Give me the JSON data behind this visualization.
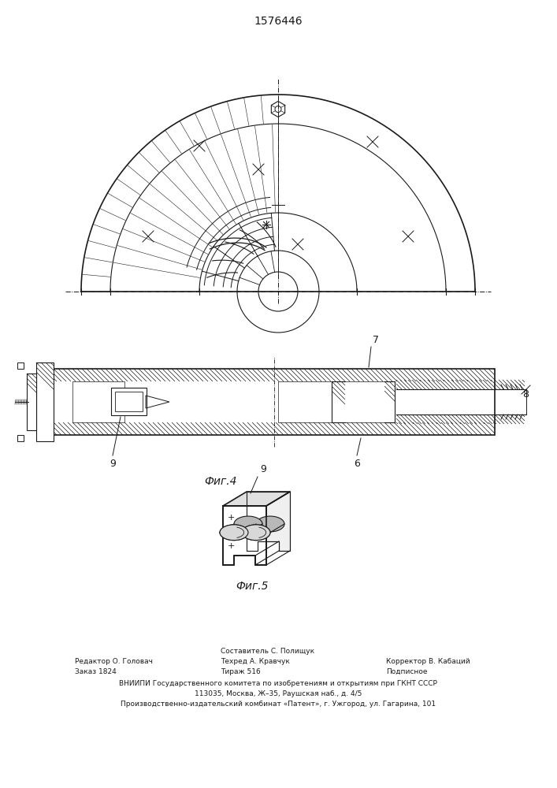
{
  "title": "1576446",
  "fig4_label": "Фиг.4",
  "fig5_label": "Фиг.5",
  "footer_line1_left": "Редактор О. Головач",
  "footer_line2_left": "Заказ 1824",
  "footer_line1_center": "Составитель С. Полищук",
  "footer_line2_center": "Техред А. Кравчук",
  "footer_line3_center": "Тираж 516",
  "footer_line1_right": "Корректор В. Кабаций",
  "footer_line2_right": "Подписное",
  "footer_vniip1": "ВНИИПИ Государственного комитета по изобретениям и открытиям при ГКНТ СССР",
  "footer_vniip2": "113035, Москва, Ж–35, Раушская наб., д. 4/5",
  "footer_vniip3": "Производственно-издательский комбинат «Патент», г. Ужгород, ул. Гагарина, 101",
  "label_6": "6",
  "label_7": "7",
  "label_8": "8",
  "label_9": "9",
  "label_9b": "9",
  "bg_color": "#ffffff",
  "line_color": "#1a1a1a",
  "hatch_color": "#333333"
}
